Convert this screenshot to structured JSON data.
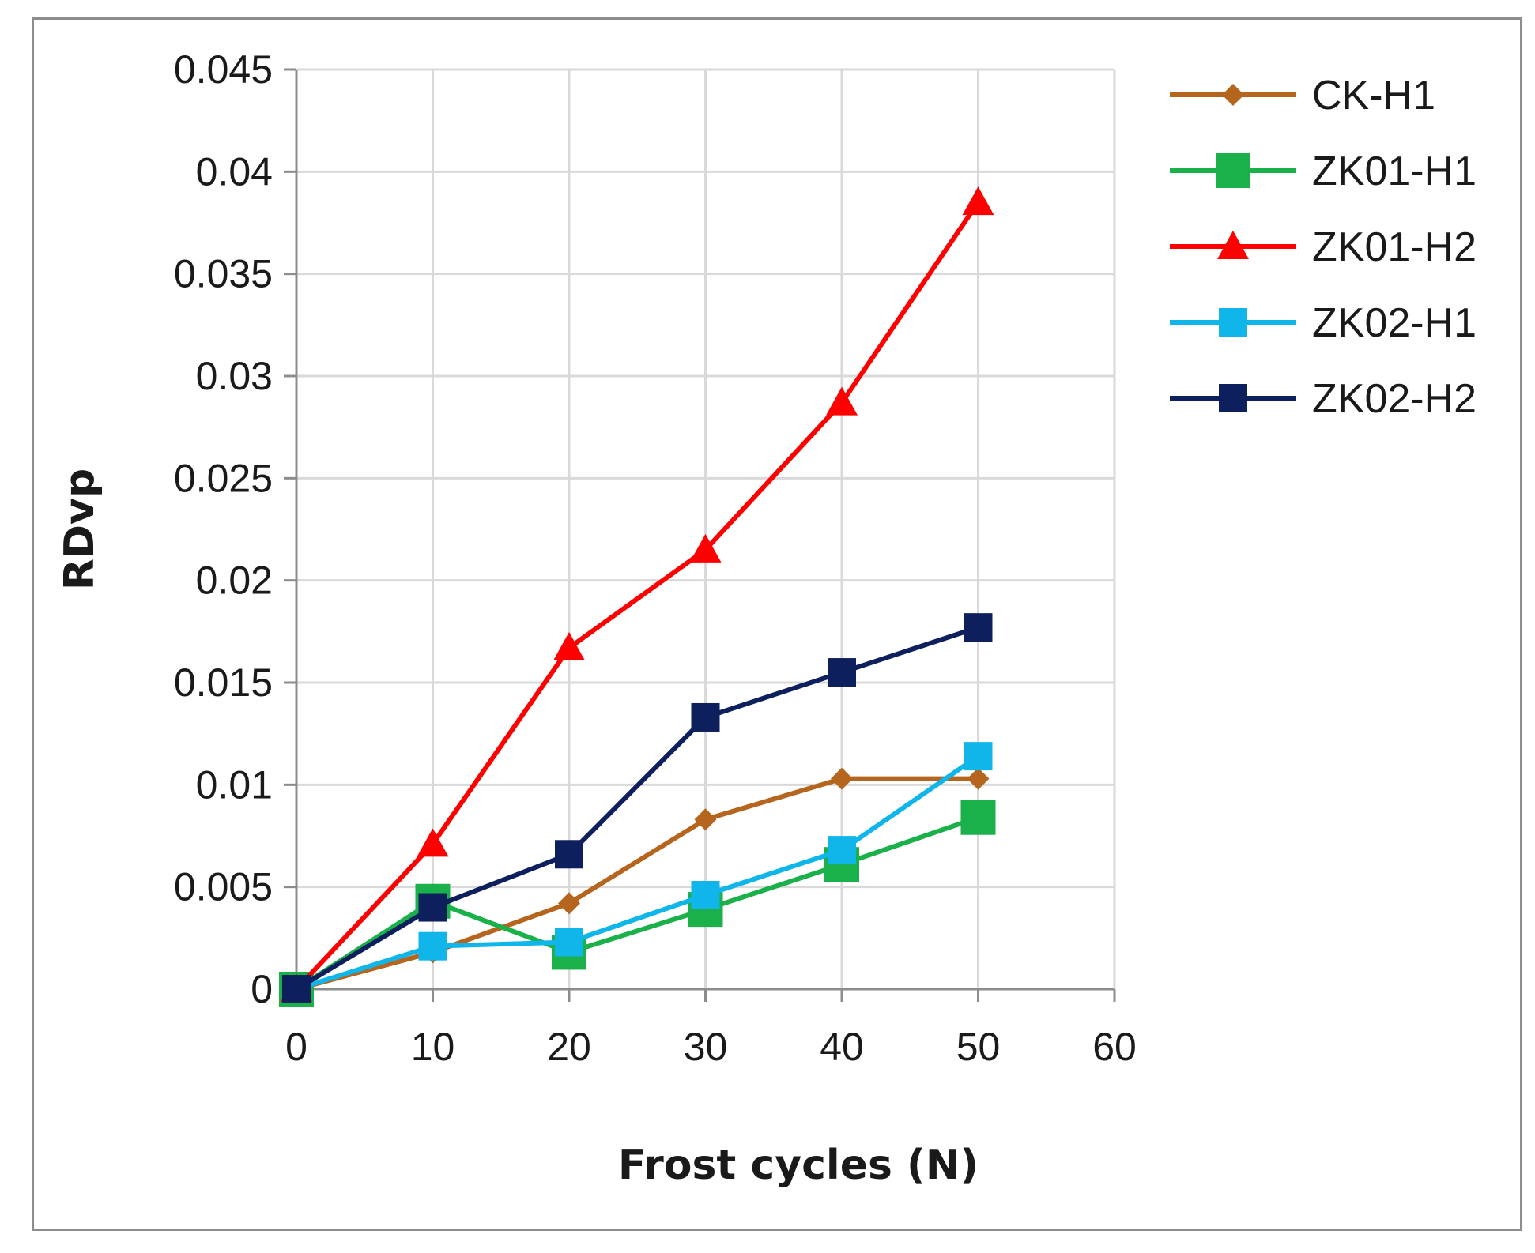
{
  "chart_data": {
    "type": "line",
    "title": "",
    "xlabel": "Frost cycles (N)",
    "ylabel": "RDvp",
    "xlim": [
      0,
      60
    ],
    "ylim": [
      0,
      0.045
    ],
    "xticks": [
      0,
      10,
      20,
      30,
      40,
      50,
      60
    ],
    "xtick_labels": [
      "0",
      "10",
      "20",
      "30",
      "40",
      "50",
      "60"
    ],
    "yticks": [
      0,
      0.005,
      0.01,
      0.015,
      0.02,
      0.025,
      0.03,
      0.035,
      0.04,
      0.045
    ],
    "ytick_labels": [
      "0",
      "0.005",
      "0.01",
      "0.015",
      "0.02",
      "0.025",
      "0.03",
      "0.035",
      "0.04",
      "0.045"
    ],
    "grid": true,
    "legend_position": "top-right",
    "x": [
      0,
      10,
      20,
      30,
      40,
      50
    ],
    "series": [
      {
        "name": "CK-H1",
        "color": "#b5651d",
        "marker": "diamond",
        "values": [
          0,
          0.0018,
          0.0042,
          0.0083,
          0.0103,
          0.0103
        ]
      },
      {
        "name": "ZK01-H1",
        "color": "#1ab04a",
        "marker": "square-large",
        "values": [
          0,
          0.0043,
          0.0018,
          0.0039,
          0.0061,
          0.0084
        ]
      },
      {
        "name": "ZK01-H2",
        "color": "#ff0000",
        "marker": "triangle",
        "values": [
          0,
          0.0071,
          0.0167,
          0.0215,
          0.0287,
          0.0385
        ]
      },
      {
        "name": "ZK02-H1",
        "color": "#10b5ea",
        "marker": "square",
        "values": [
          0,
          0.0021,
          0.0023,
          0.0046,
          0.0068,
          0.0114
        ]
      },
      {
        "name": "ZK02-H2",
        "color": "#0d1f5c",
        "marker": "square",
        "values": [
          0,
          0.004,
          0.0066,
          0.0133,
          0.0155,
          0.0177
        ]
      }
    ]
  }
}
